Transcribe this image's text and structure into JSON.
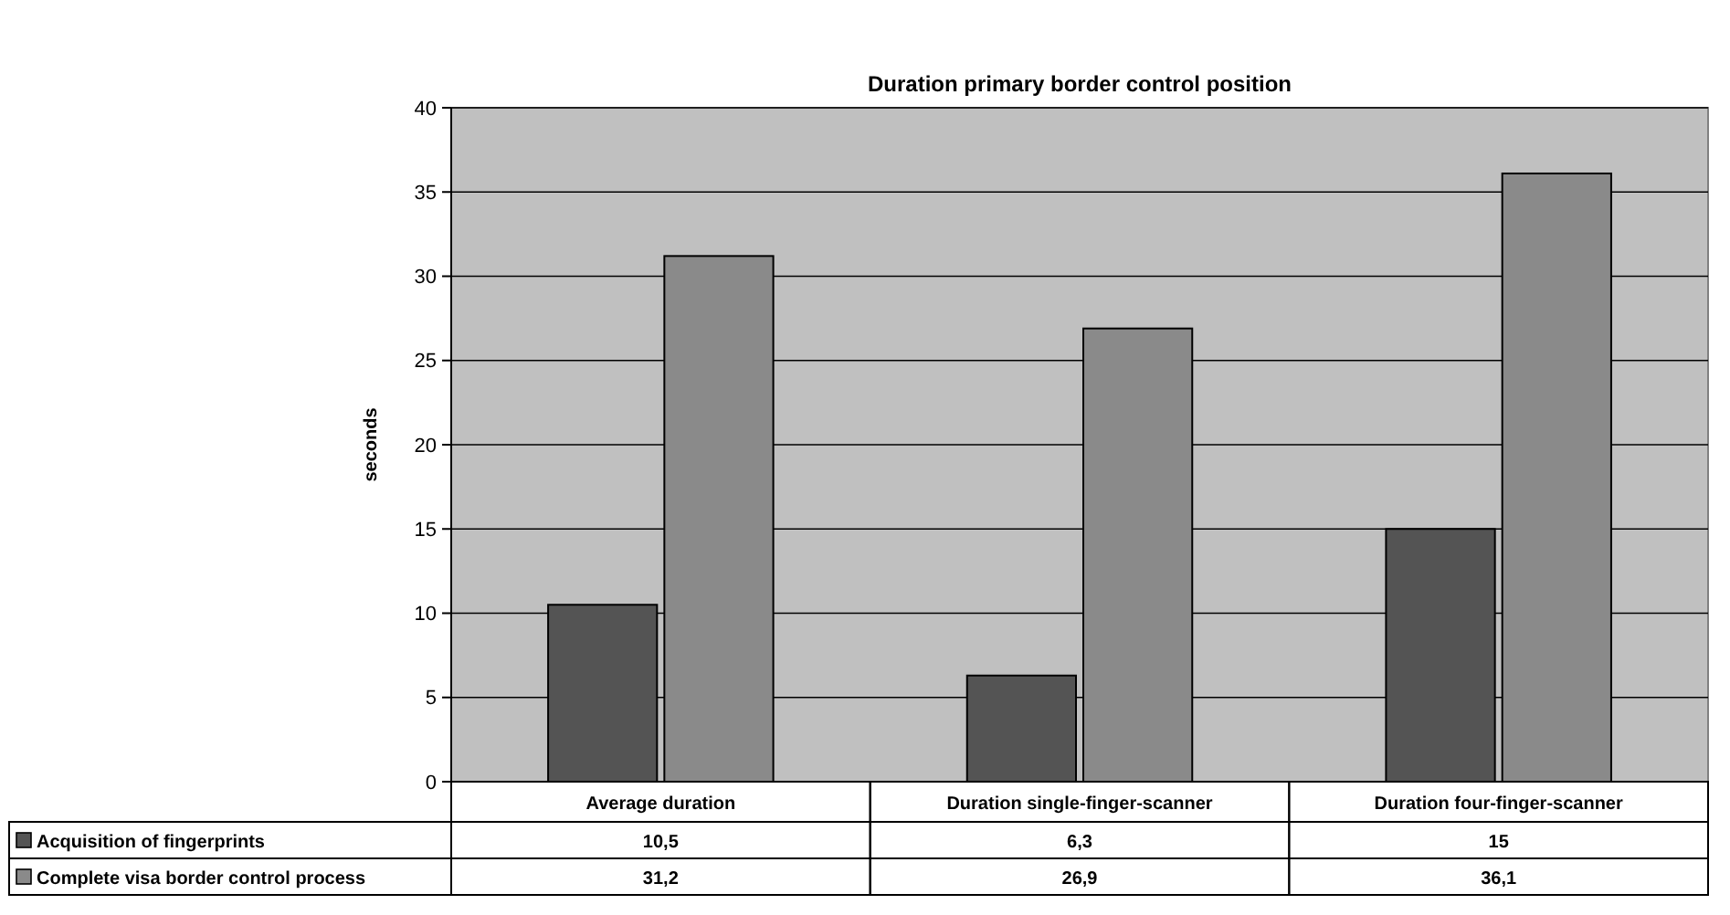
{
  "chart_data": {
    "type": "bar",
    "title": "Duration primary border control position",
    "ylabel": "seconds",
    "categories": [
      "Average duration",
      "Duration single-finger-scanner",
      "Duration four-finger-scanner"
    ],
    "series": [
      {
        "name": "Acquisition of fingerprints",
        "color": "#545454",
        "values": [
          10.5,
          6.3,
          15
        ],
        "value_labels": [
          "10,5",
          "6,3",
          "15"
        ]
      },
      {
        "name": "Complete visa border control process",
        "color": "#8a8a8a",
        "values": [
          31.2,
          26.9,
          36.1
        ],
        "value_labels": [
          "31,2",
          "26,9",
          "36,1"
        ]
      }
    ],
    "ylim": [
      0,
      40
    ],
    "yticks": [
      0,
      5,
      10,
      15,
      20,
      25,
      30,
      35,
      40
    ],
    "grid": "y",
    "legend": "bottom"
  }
}
